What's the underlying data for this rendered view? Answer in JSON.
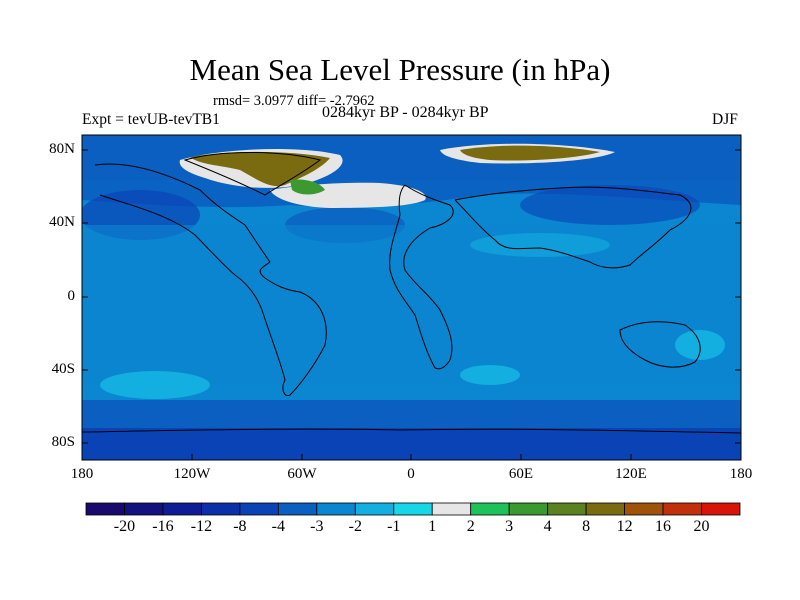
{
  "title": "Mean Sea Level Pressure (in hPa)",
  "stats": "rmsd= 3.0977 diff= -2.7962",
  "expt": "Expt = tevUB-tevTB1",
  "period": "0284kyr BP - 0284kyr BP",
  "season": "DJF",
  "axes": {
    "y_ticks": [
      "80N",
      "40N",
      "0",
      "40S",
      "80S"
    ],
    "x_ticks": [
      "180",
      "120W",
      "60W",
      "0",
      "60E",
      "120E",
      "180"
    ]
  },
  "colorbar": {
    "labels": [
      "-20",
      "-16",
      "-12",
      "-8",
      "-4",
      "-3",
      "-2",
      "-1",
      "1",
      "2",
      "3",
      "4",
      "8",
      "12",
      "16",
      "20"
    ],
    "colors": [
      "#1a0a6e",
      "#13127f",
      "#0d1d96",
      "#0c2ea8",
      "#0a43b5",
      "#0a5fc0",
      "#0b86d0",
      "#12afe0",
      "#16d7e8",
      "#e6e6e6",
      "#1dc35a",
      "#3a9a30",
      "#5a8220",
      "#7a6a10",
      "#a0520a",
      "#c0300a",
      "#d81408"
    ]
  },
  "map": {
    "background": "#0b86d0",
    "land_outline": "#000000"
  }
}
